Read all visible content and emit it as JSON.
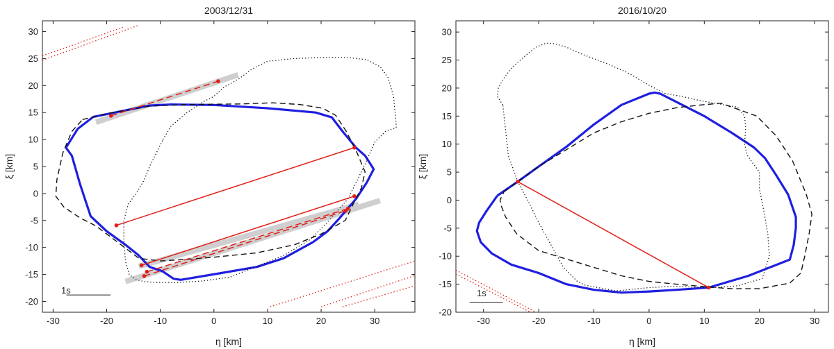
{
  "chart_data": [
    {
      "type": "line",
      "title": "2003/12/31",
      "xlabel": "η [km]",
      "ylabel": "ξ [km]",
      "xlim": [
        -32,
        37.5
      ],
      "ylim": [
        -22,
        32
      ],
      "xticks": [
        -30,
        -20,
        -10,
        0,
        10,
        20,
        30
      ],
      "yticks": [
        -20,
        -15,
        -10,
        -5,
        0,
        5,
        10,
        15,
        20,
        25,
        30
      ],
      "scale_label": "1s",
      "scale_bar": {
        "x": [
          -27.5,
          -19.3
        ],
        "y": -18.8
      },
      "outlines": [
        {
          "name": "model-blue",
          "style": "solid",
          "color": "#1f1fe0",
          "x": [
            -22.5,
            -12,
            -8,
            0,
            10,
            19,
            22,
            24,
            26.5,
            28.2,
            29.5,
            29.8,
            28.5,
            26.5,
            23.5,
            21.2,
            18.5,
            13,
            8,
            1,
            -6.2,
            -7.5,
            -9.6,
            -12,
            -14,
            -16.5,
            -20,
            -23,
            -25,
            -26.5,
            -27.6,
            -25.4,
            -22.5
          ],
          "y": [
            14.2,
            16.3,
            16.5,
            16.4,
            15.8,
            15.0,
            14.1,
            11.5,
            8.5,
            7.0,
            5.0,
            4.5,
            2.0,
            -1.0,
            -4.5,
            -7.0,
            -9.0,
            -12.0,
            -13.6,
            -14.8,
            -16.0,
            -15.8,
            -14.4,
            -13.6,
            -11.5,
            -9.5,
            -7.0,
            -4.2,
            1.8,
            7.0,
            8.5,
            12.0,
            14.2
          ]
        },
        {
          "name": "model-dashed",
          "style": "dashed",
          "color": "#111111",
          "x": [
            -24.5,
            -20,
            -12,
            -5,
            5,
            11,
            16,
            20.3,
            22.7,
            24.7,
            26.5,
            28.2,
            27.5,
            26.2,
            24.5,
            20,
            15,
            8,
            0,
            -5,
            -10,
            -14,
            -18,
            -22,
            -25,
            -28,
            -29.5,
            -29.3,
            -28.2,
            -26.5,
            -24.5
          ],
          "y": [
            13.7,
            14.8,
            16.2,
            16.5,
            16.6,
            16.8,
            16.5,
            15.8,
            14.5,
            11.5,
            8.0,
            4.0,
            1.0,
            -1.5,
            -5.0,
            -7.5,
            -9.5,
            -11.0,
            -11.8,
            -12.2,
            -12.5,
            -12.0,
            -9.0,
            -6.0,
            -4.5,
            -2.5,
            -0.5,
            2.5,
            7.5,
            11.5,
            13.7
          ]
        },
        {
          "name": "model-dotted",
          "style": "dotted",
          "color": "#111111",
          "x": [
            -9.5,
            -8,
            -5,
            -2,
            0,
            2,
            3,
            5,
            7,
            10,
            15,
            20,
            25,
            28.5,
            31,
            32.5,
            33.5,
            34,
            34,
            32,
            30,
            28,
            25,
            21,
            18,
            13,
            8,
            3,
            -2,
            -7,
            -10.8,
            -13,
            -14.5,
            -15.8,
            -16.5,
            -16.8,
            -16.8,
            -16,
            -14.5,
            -13,
            -12,
            -10.5,
            -9.5
          ],
          "y": [
            10.0,
            12.5,
            15.0,
            17.0,
            18.0,
            19.8,
            20.3,
            21.5,
            23.0,
            24.5,
            25.0,
            25.2,
            25.2,
            24.8,
            23.5,
            21.5,
            18.0,
            13.0,
            12.2,
            11.5,
            9.5,
            5.0,
            -1.0,
            -5.5,
            -8.5,
            -11.5,
            -13.5,
            -15.5,
            -16.2,
            -16.5,
            -16.5,
            -16.3,
            -16.0,
            -15.0,
            -12.5,
            -9.0,
            -5.0,
            -2.0,
            0.0,
            2.5,
            5.0,
            8.0,
            10.0
          ]
        }
      ],
      "shadow_bands": [
        {
          "x": [
            -22,
            4.5
          ],
          "y": [
            13.2,
            22.0
          ]
        },
        {
          "x": [
            -16.5,
            31
          ],
          "y": [
            -16.3,
            -1.3
          ]
        },
        {
          "x": [
            -14,
            27
          ],
          "y": [
            -13.5,
            -2.0
          ]
        }
      ],
      "chords": [
        {
          "style": "dashed",
          "x": [
            -19.2,
            0.8
          ],
          "y": [
            14.4,
            20.8
          ]
        },
        {
          "style": "solid",
          "x": [
            -18.2,
            26.2
          ],
          "y": [
            -5.9,
            8.5
          ]
        },
        {
          "style": "solid",
          "x": [
            -13.5,
            26.2
          ],
          "y": [
            -13.3,
            -0.5
          ]
        },
        {
          "style": "dashed",
          "x": [
            -12.5,
            25
          ],
          "y": [
            -14.5,
            -2.8
          ]
        },
        {
          "style": "dashed",
          "x": [
            -13,
            24.6
          ],
          "y": [
            -15.3,
            -3.2
          ]
        }
      ],
      "dotted_chords": [
        {
          "x": [
            -32,
            -17
          ],
          "y": [
            25.5,
            30.8
          ]
        },
        {
          "x": [
            -32,
            -14
          ],
          "y": [
            24.7,
            31.2
          ]
        },
        {
          "x": [
            10.5,
            37.5
          ],
          "y": [
            -21,
            -12.5
          ]
        },
        {
          "x": [
            20,
            37.5
          ],
          "y": [
            -21,
            -15.2
          ]
        },
        {
          "x": [
            24,
            37.5
          ],
          "y": [
            -21,
            -17.1
          ]
        }
      ],
      "markers": [
        {
          "x": -19.2,
          "y": 14.4
        },
        {
          "x": 0.8,
          "y": 20.8
        },
        {
          "x": -18.2,
          "y": -5.9
        },
        {
          "x": 26.2,
          "y": 8.5
        },
        {
          "x": -13.5,
          "y": -13.3
        },
        {
          "x": 26.2,
          "y": -0.5
        },
        {
          "x": -12.5,
          "y": -14.5
        },
        {
          "x": 25,
          "y": -2.8
        },
        {
          "x": -13,
          "y": -15.3
        },
        {
          "x": 24.6,
          "y": -3.2
        }
      ]
    },
    {
      "type": "line",
      "title": "2016/10/20",
      "xlabel": "η [km]",
      "ylabel": "ξ [km]",
      "xlim": [
        -35,
        32.5
      ],
      "ylim": [
        -20,
        32
      ],
      "xticks": [
        -30,
        -20,
        -10,
        0,
        10,
        20,
        30
      ],
      "yticks": [
        -20,
        -15,
        -10,
        -5,
        0,
        5,
        10,
        15,
        20,
        25,
        30
      ],
      "scale_label": "1s",
      "scale_bar": {
        "x": [
          -32.5,
          -26.5
        ],
        "y": -18.2
      },
      "outlines": [
        {
          "name": "model-blue",
          "style": "solid",
          "color": "#1f1fe0",
          "x": [
            -27.5,
            -23.8,
            -20,
            -15,
            -10,
            -5,
            0,
            1,
            2,
            5,
            10,
            15,
            19,
            21,
            23,
            25.2,
            26.6,
            26.6,
            26.2,
            25.5,
            18,
            10.8,
            5,
            0,
            -5,
            -10,
            -15,
            -20,
            -25,
            -28.5,
            -30.5,
            -31.2,
            -30.8,
            -29.5,
            -27.5
          ],
          "y": [
            0.8,
            3.3,
            6.0,
            9.5,
            13.5,
            17.0,
            19.0,
            19.2,
            19.0,
            17.5,
            15.0,
            12.0,
            9.4,
            7.5,
            4.5,
            1.0,
            -3.0,
            -5.0,
            -8.0,
            -10.6,
            -13.5,
            -15.6,
            -16.0,
            -16.3,
            -16.5,
            -16.0,
            -15.0,
            -13.0,
            -11.5,
            -9.5,
            -7.5,
            -5.5,
            -4.0,
            -2.0,
            0.8
          ]
        },
        {
          "name": "model-dashed",
          "style": "dashed",
          "color": "#111111",
          "x": [
            -26.3,
            -23.8,
            -20,
            -15,
            -10,
            -5,
            0,
            5,
            9.5,
            13,
            19.5,
            23,
            26,
            28.5,
            29.5,
            29,
            28.2,
            27.5,
            25.5,
            20,
            15,
            10.8,
            5,
            0,
            -5,
            -10,
            -15,
            -20,
            -24,
            -26,
            -26.8,
            -27,
            -26.3
          ],
          "y": [
            1.5,
            3.3,
            6.0,
            9.0,
            12.0,
            14.0,
            15.5,
            16.5,
            17.0,
            17.3,
            15.0,
            11.5,
            7.0,
            1.0,
            -2.5,
            -6.0,
            -10.0,
            -13.0,
            -14.8,
            -15.8,
            -15.8,
            -15.5,
            -15.0,
            -14.5,
            -13.5,
            -12.0,
            -10.5,
            -9.0,
            -6.0,
            -3.0,
            -1.0,
            0.0,
            1.5
          ]
        },
        {
          "name": "model-dotted",
          "style": "dotted",
          "color": "#111111",
          "x": [
            -26.5,
            -27.5,
            -27.3,
            -26.5,
            -25,
            -23,
            -20.5,
            -19,
            -18.3,
            -17,
            -15,
            -12,
            -8,
            -4,
            0,
            3,
            6,
            9,
            13,
            16,
            17.3,
            17.5,
            17.3,
            17.8,
            18.5,
            20,
            20,
            20.8,
            21.5,
            21.8,
            20.5,
            16,
            12,
            10.8,
            8,
            4,
            0,
            -6,
            -11.5,
            -13,
            -15.5,
            -17.5,
            -20,
            -22,
            -23.8,
            -25.5,
            -26.5
          ],
          "y": [
            17.0,
            18.5,
            20.0,
            21.5,
            23.5,
            25.3,
            27.3,
            27.9,
            28.0,
            27.9,
            27.3,
            26.0,
            24.5,
            22.8,
            20.5,
            19.0,
            18.5,
            17.8,
            17.1,
            16.6,
            15.0,
            13.0,
            10.0,
            8.0,
            7.0,
            5.0,
            2.0,
            -2.0,
            -6.0,
            -10.0,
            -14.0,
            -15.3,
            -15.6,
            -15.6,
            -15.5,
            -15.4,
            -15.6,
            -16.2,
            -15.2,
            -14.5,
            -12.0,
            -8.5,
            -4.0,
            0.0,
            3.3,
            8.0,
            17.0
          ]
        }
      ],
      "shadow_bands": [],
      "chords": [
        {
          "style": "solid",
          "x": [
            -23.8,
            10.8
          ],
          "y": [
            3.3,
            -15.6
          ]
        }
      ],
      "dotted_chords": [
        {
          "x": [
            -35,
            -20.5
          ],
          "y": [
            -12.5,
            -20
          ]
        },
        {
          "x": [
            -35,
            -21.5
          ],
          "y": [
            -13.2,
            -20
          ]
        }
      ],
      "markers": [
        {
          "x": -23.8,
          "y": 3.3
        },
        {
          "x": 10.8,
          "y": -15.6
        }
      ]
    }
  ]
}
